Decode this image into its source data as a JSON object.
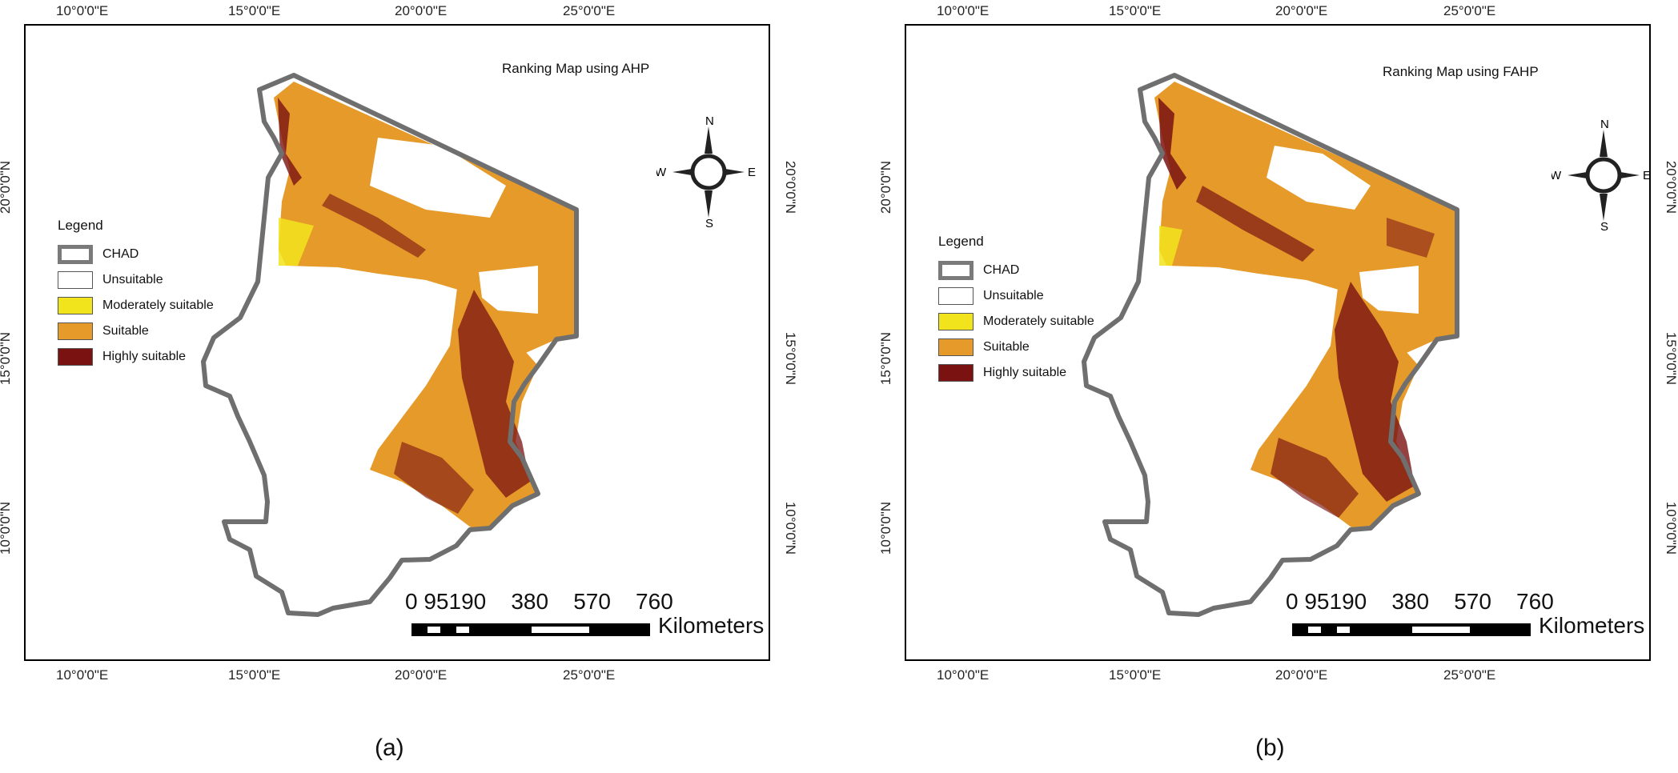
{
  "panels": [
    {
      "id": "a",
      "title": "Ranking Map using AHP",
      "caption": "(a)",
      "lon_ticks": [
        "10°0'0\"E",
        "15°0'0\"E",
        "20°0'0\"E",
        "25°0'0\"E"
      ],
      "lat_ticks": [
        "20°0'0\"N",
        "15°0'0\"N",
        "10°0'0\"N"
      ]
    },
    {
      "id": "b",
      "title": "Ranking Map using FAHP",
      "caption": "(b)",
      "lon_ticks": [
        "10°0'0\"E",
        "15°0'0\"E",
        "20°0'0\"E",
        "25°0'0\"E"
      ],
      "lat_ticks": [
        "20°0'0\"N",
        "15°0'0\"N",
        "10°0'0\"N"
      ]
    }
  ],
  "legend": {
    "title": "Legend",
    "items": [
      {
        "label": "CHAD",
        "color": "#7a7a7a"
      },
      {
        "label": "Unsuitable",
        "color": "#ffffff"
      },
      {
        "label": "Moderately suitable",
        "color": "#f2e41c"
      },
      {
        "label": "Suitable",
        "color": "#e59a2a"
      },
      {
        "label": "Highly suitable",
        "color": "#7a1212"
      }
    ]
  },
  "compass": {
    "n": "N",
    "s": "S",
    "e": "E",
    "w": "W"
  },
  "scale": {
    "labels": [
      "0",
      "95",
      "190",
      "380",
      "570",
      "760"
    ],
    "unit": "Kilometers"
  },
  "colors": {
    "boundary": "#6f6f6f",
    "suitable": "#e59a2a",
    "highly": "#7a1212",
    "moderate": "#f2e41c"
  }
}
